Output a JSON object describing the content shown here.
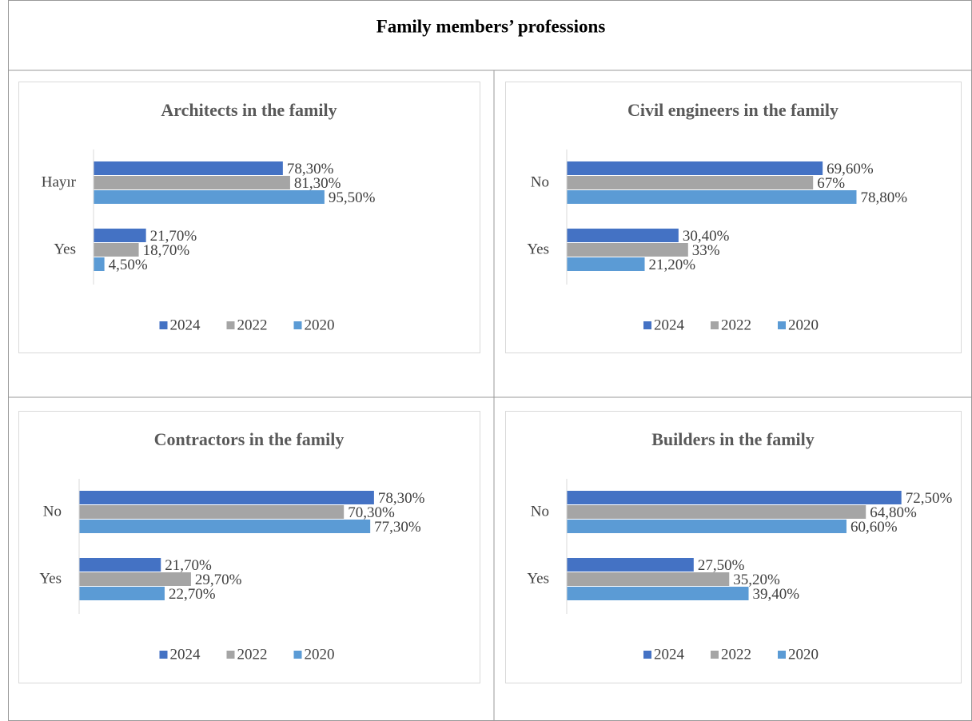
{
  "title": "Family members’ professions",
  "chart_data": [
    {
      "type": "bar",
      "orientation": "horizontal",
      "title": "Architects in the family",
      "categories": [
        "Hayır",
        "Yes"
      ],
      "xlim": [
        0,
        120
      ],
      "series": [
        {
          "name": "2024",
          "color": "#4472c4",
          "values": [
            78.3,
            21.7
          ],
          "value_labels": [
            "78,30%",
            "21,70%"
          ]
        },
        {
          "name": "2022",
          "color": "#a5a5a5",
          "values": [
            81.3,
            18.7
          ],
          "value_labels": [
            "81,30%",
            "18,70%"
          ]
        },
        {
          "name": "2020",
          "color": "#5b9bd5",
          "values": [
            95.5,
            4.5
          ],
          "value_labels": [
            "95,50%",
            "4,50%"
          ]
        }
      ]
    },
    {
      "type": "bar",
      "orientation": "horizontal",
      "title": "Civil engineers in the family",
      "categories": [
        "No",
        "Yes"
      ],
      "xlim": [
        0,
        90
      ],
      "series": [
        {
          "name": "2024",
          "color": "#4472c4",
          "values": [
            69.6,
            30.4
          ],
          "value_labels": [
            "69,60%",
            "30,40%"
          ]
        },
        {
          "name": "2022",
          "color": "#a5a5a5",
          "values": [
            67,
            33
          ],
          "value_labels": [
            "67%",
            "33%"
          ]
        },
        {
          "name": "2020",
          "color": "#5b9bd5",
          "values": [
            78.8,
            21.2
          ],
          "value_labels": [
            "78,80%",
            "21,20%"
          ]
        }
      ]
    },
    {
      "type": "bar",
      "orientation": "horizontal",
      "title": "Contractors in the family",
      "categories": [
        "No",
        "Yes"
      ],
      "xlim": [
        0,
        90
      ],
      "series": [
        {
          "name": "2024",
          "color": "#4472c4",
          "values": [
            78.3,
            21.7
          ],
          "value_labels": [
            "78,30%",
            "21,70%"
          ]
        },
        {
          "name": "2022",
          "color": "#a5a5a5",
          "values": [
            70.3,
            29.7
          ],
          "value_labels": [
            "70,30%",
            "29,70%"
          ]
        },
        {
          "name": "2020",
          "color": "#5b9bd5",
          "values": [
            77.3,
            22.7
          ],
          "value_labels": [
            "77,30%",
            "22,70%"
          ]
        }
      ]
    },
    {
      "type": "bar",
      "orientation": "horizontal",
      "title": "Builders in the family",
      "categories": [
        "No",
        "Yes"
      ],
      "xlim": [
        0,
        80
      ],
      "series": [
        {
          "name": "2024",
          "color": "#4472c4",
          "values": [
            72.5,
            27.5
          ],
          "value_labels": [
            "72,50%",
            "27,50%"
          ]
        },
        {
          "name": "2022",
          "color": "#a5a5a5",
          "values": [
            64.8,
            35.2
          ],
          "value_labels": [
            "64,80%",
            "35,20%"
          ]
        },
        {
          "name": "2020",
          "color": "#5b9bd5",
          "values": [
            60.6,
            39.4
          ],
          "value_labels": [
            "60,60%",
            "39,40%"
          ]
        }
      ]
    }
  ]
}
